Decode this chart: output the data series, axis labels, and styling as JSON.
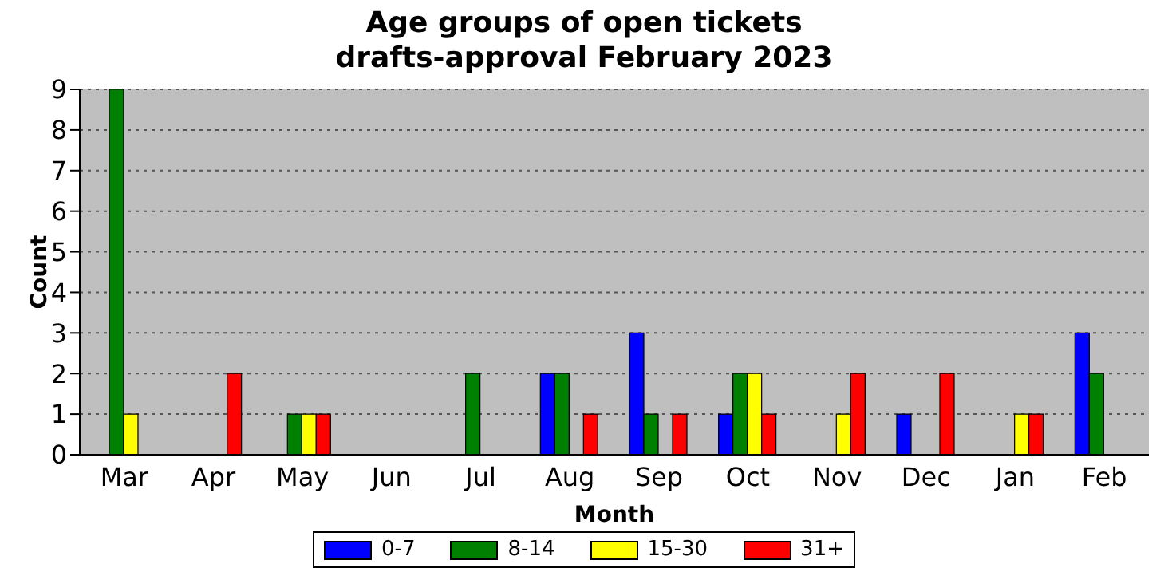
{
  "chart_data": {
    "type": "bar",
    "title": "Age groups of open tickets",
    "subtitle": "drafts-approval February 2023",
    "xlabel": "Month",
    "ylabel": "Count",
    "categories": [
      "Mar",
      "Apr",
      "May",
      "Jun",
      "Jul",
      "Aug",
      "Sep",
      "Oct",
      "Nov",
      "Dec",
      "Jan",
      "Feb"
    ],
    "series": [
      {
        "name": "0-7",
        "color": "#0000ff",
        "values": [
          0,
          0,
          0,
          0,
          0,
          2,
          3,
          1,
          0,
          1,
          0,
          3
        ]
      },
      {
        "name": "8-14",
        "color": "#008000",
        "values": [
          9,
          0,
          1,
          0,
          2,
          2,
          1,
          2,
          0,
          0,
          0,
          2
        ]
      },
      {
        "name": "15-30",
        "color": "#ffff00",
        "values": [
          1,
          0,
          1,
          0,
          0,
          0,
          0,
          2,
          1,
          0,
          1,
          0
        ]
      },
      {
        "name": "31+",
        "color": "#ff0000",
        "values": [
          0,
          2,
          1,
          0,
          0,
          1,
          1,
          1,
          2,
          2,
          1,
          0
        ]
      }
    ],
    "ylim": [
      0,
      9
    ],
    "yticks": [
      0,
      1,
      2,
      3,
      4,
      5,
      6,
      7,
      8,
      9
    ],
    "grid": "y",
    "legend": "bottom"
  }
}
